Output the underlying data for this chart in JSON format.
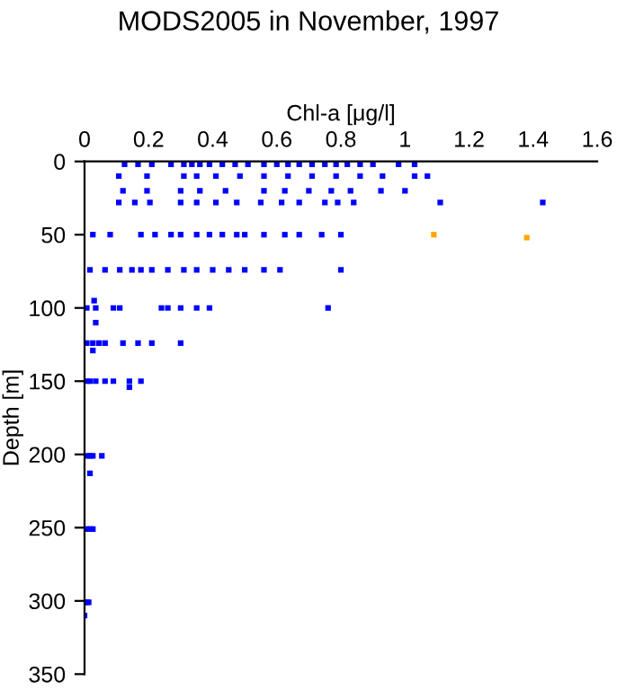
{
  "chart_data": {
    "type": "scatter",
    "title": "MODS2005 in November, 1997",
    "xlabel": "Chl-a [μg/l]",
    "ylabel": "Depth [m]",
    "xlim": [
      0,
      1.6
    ],
    "xticks": [
      0,
      0.2,
      0.4,
      0.6,
      0.8,
      1,
      1.2,
      1.4,
      1.6
    ],
    "ylim": [
      350,
      0
    ],
    "yticks": [
      0,
      50,
      100,
      150,
      200,
      250,
      300,
      350
    ],
    "marker": "square",
    "grid": false,
    "series": [
      {
        "color": "#0000ff",
        "x": [
          0.125,
          0.167,
          0.21,
          0.27,
          0.31,
          0.335,
          0.36,
          0.39,
          0.43,
          0.47,
          0.51,
          0.56,
          0.6,
          0.635,
          0.67,
          0.71,
          0.75,
          0.785,
          0.82,
          0.86,
          0.9,
          0.98,
          1.03,
          0.107,
          0.195,
          0.31,
          0.35,
          0.41,
          0.485,
          0.56,
          0.635,
          0.71,
          0.785,
          0.86,
          0.93,
          1.03,
          1.07,
          0.12,
          0.195,
          0.3,
          0.36,
          0.44,
          0.56,
          0.625,
          0.7,
          0.77,
          0.83,
          0.925,
          1.0,
          0.107,
          0.157,
          0.204,
          0.3,
          0.35,
          0.41,
          0.475,
          0.55,
          0.615,
          0.67,
          0.75,
          0.79,
          0.84,
          1.11,
          1.43,
          0.026,
          0.08,
          0.176,
          0.22,
          0.27,
          0.3,
          0.35,
          0.39,
          0.43,
          0.475,
          0.5,
          0.56,
          0.625,
          0.67,
          0.74,
          0.8,
          0.017,
          0.064,
          0.11,
          0.148,
          0.176,
          0.21,
          0.26,
          0.31,
          0.35,
          0.4,
          0.45,
          0.5,
          0.56,
          0.61,
          0.8,
          0.76,
          0.007,
          0.035,
          0.09,
          0.11,
          0.24,
          0.26,
          0.3,
          0.35,
          0.39,
          0.03,
          0.007,
          0.026,
          0.045,
          0.064,
          0.12,
          0.167,
          0.21,
          0.3,
          0.035,
          0.026,
          0.007,
          0.017,
          0.035,
          0.064,
          0.09,
          0.14,
          0.176,
          0.14,
          0.007,
          0.017,
          0.026,
          0.054,
          0.017,
          0.007,
          0.017,
          0.026,
          0,
          0.007,
          0.013,
          0
        ],
        "values": [
          2,
          2,
          2,
          2,
          2,
          2,
          2,
          2,
          2,
          2,
          2,
          2,
          2,
          2,
          2,
          2,
          2,
          2,
          2,
          2,
          2,
          2,
          2,
          10,
          10,
          10,
          10,
          10,
          10,
          10,
          10,
          10,
          10,
          10,
          10,
          10,
          10,
          20,
          20,
          20,
          20,
          20,
          20,
          20,
          20,
          20,
          20,
          20,
          20,
          28,
          28,
          28,
          28,
          28,
          28,
          28,
          28,
          28,
          28,
          28,
          28,
          28,
          28,
          28,
          50,
          50,
          50,
          50,
          50,
          50,
          50,
          50,
          50,
          50,
          50,
          50,
          50,
          50,
          50,
          50,
          74,
          74,
          74,
          74,
          74,
          74,
          74,
          74,
          74,
          74,
          74,
          74,
          74,
          74,
          74,
          100,
          100,
          100,
          100,
          100,
          100,
          100,
          100,
          100,
          100,
          95,
          124,
          124,
          124,
          124,
          124,
          124,
          124,
          124,
          110,
          129,
          150,
          150,
          150,
          150,
          150,
          150,
          150,
          154,
          201,
          201,
          201,
          201,
          213,
          251,
          251,
          251,
          301,
          301,
          301,
          310
        ]
      },
      {
        "color": "#ffa500",
        "x": [
          1.09,
          1.38
        ],
        "values": [
          50,
          52
        ]
      }
    ]
  }
}
